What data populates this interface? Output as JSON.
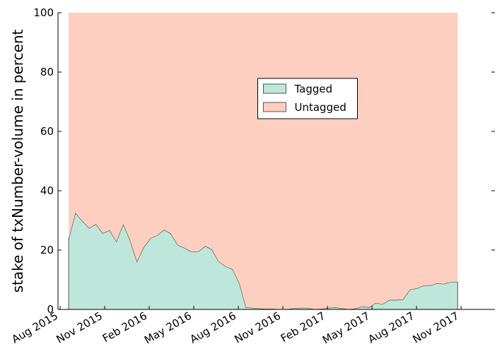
{
  "chart_data": {
    "type": "stacked_area",
    "ylabel": "stake of txNumber-volume in percent",
    "x": [
      2015.631,
      2015.669,
      2015.708,
      2015.746,
      2015.784,
      2015.822,
      2015.861,
      2015.899,
      2015.937,
      2015.976,
      2016.014,
      2016.052,
      2016.09,
      2016.129,
      2016.167,
      2016.205,
      2016.244,
      2016.282,
      2016.32,
      2016.359,
      2016.397,
      2016.435,
      2016.473,
      2016.512,
      2016.55,
      2016.588,
      2016.627,
      2016.665,
      2016.703,
      2016.741,
      2016.78,
      2016.818,
      2016.856,
      2016.895,
      2016.933,
      2016.971,
      2017.009,
      2017.048,
      2017.086,
      2017.124,
      2017.163,
      2017.201,
      2017.239,
      2017.277,
      2017.316,
      2017.354,
      2017.392,
      2017.431,
      2017.469,
      2017.507,
      2017.546,
      2017.584,
      2017.622,
      2017.66,
      2017.699,
      2017.737,
      2017.775,
      2017.814
    ],
    "series": [
      {
        "name": "Tagged",
        "color": "#bfe6da",
        "values": [
          23.8,
          32.6,
          29.8,
          27.4,
          28.8,
          25.7,
          26.7,
          22.9,
          28.8,
          23.3,
          16.2,
          21,
          24,
          25,
          26.9,
          25.5,
          21.7,
          20.7,
          19.5,
          19.5,
          21.4,
          20.2,
          16.2,
          14.5,
          13.6,
          9,
          0.7,
          0.5,
          0.3,
          0.2,
          0.2,
          0.1,
          0.1,
          0.4,
          0.5,
          0.5,
          0.1,
          0.2,
          0.5,
          0.7,
          0.4,
          0.1,
          0.3,
          1.0,
          0.7,
          2.2,
          1.8,
          3.2,
          3.2,
          3.4,
          6.7,
          7.1,
          8.0,
          8.1,
          8.8,
          8.6,
          9.3,
          9.3
        ]
      },
      {
        "name": "Untagged",
        "color": "#fccfc0",
        "values": [
          76.2,
          67.4,
          70.2,
          72.6,
          71.2,
          74.3,
          73.3,
          77.1,
          71.2,
          76.7,
          83.8,
          79,
          76,
          75,
          73.1,
          74.5,
          78.3,
          79.3,
          80.5,
          80.5,
          78.6,
          79.8,
          83.8,
          85.5,
          86.4,
          91,
          99.3,
          99.5,
          99.7,
          99.8,
          99.8,
          99.9,
          99.9,
          99.6,
          99.5,
          99.5,
          99.9,
          99.8,
          99.5,
          99.3,
          99.6,
          99.9,
          99.7,
          99,
          99.3,
          97.8,
          98.2,
          96.8,
          96.8,
          96.6,
          93.3,
          92.9,
          92,
          91.9,
          91.2,
          91.4,
          90.7,
          90.7
        ]
      }
    ],
    "xlim": [
      2015.571,
      2018.023
    ],
    "xticks": [
      {
        "value": 2015.583,
        "label": "Aug 2015"
      },
      {
        "value": 2015.833,
        "label": "Nov 2015"
      },
      {
        "value": 2016.083,
        "label": "Feb 2016"
      },
      {
        "value": 2016.333,
        "label": "May 2016"
      },
      {
        "value": 2016.583,
        "label": "Aug 2016"
      },
      {
        "value": 2016.833,
        "label": "Nov 2016"
      },
      {
        "value": 2017.083,
        "label": "Feb 2017"
      },
      {
        "value": 2017.333,
        "label": "May 2017"
      },
      {
        "value": 2017.583,
        "label": "Aug 2017"
      },
      {
        "value": 2017.833,
        "label": "Nov 2017"
      }
    ],
    "ylim": [
      0,
      100
    ],
    "yticks": [
      0,
      20,
      40,
      60,
      80,
      100
    ],
    "line_color": "#555555",
    "legend_loc": "upper center"
  }
}
